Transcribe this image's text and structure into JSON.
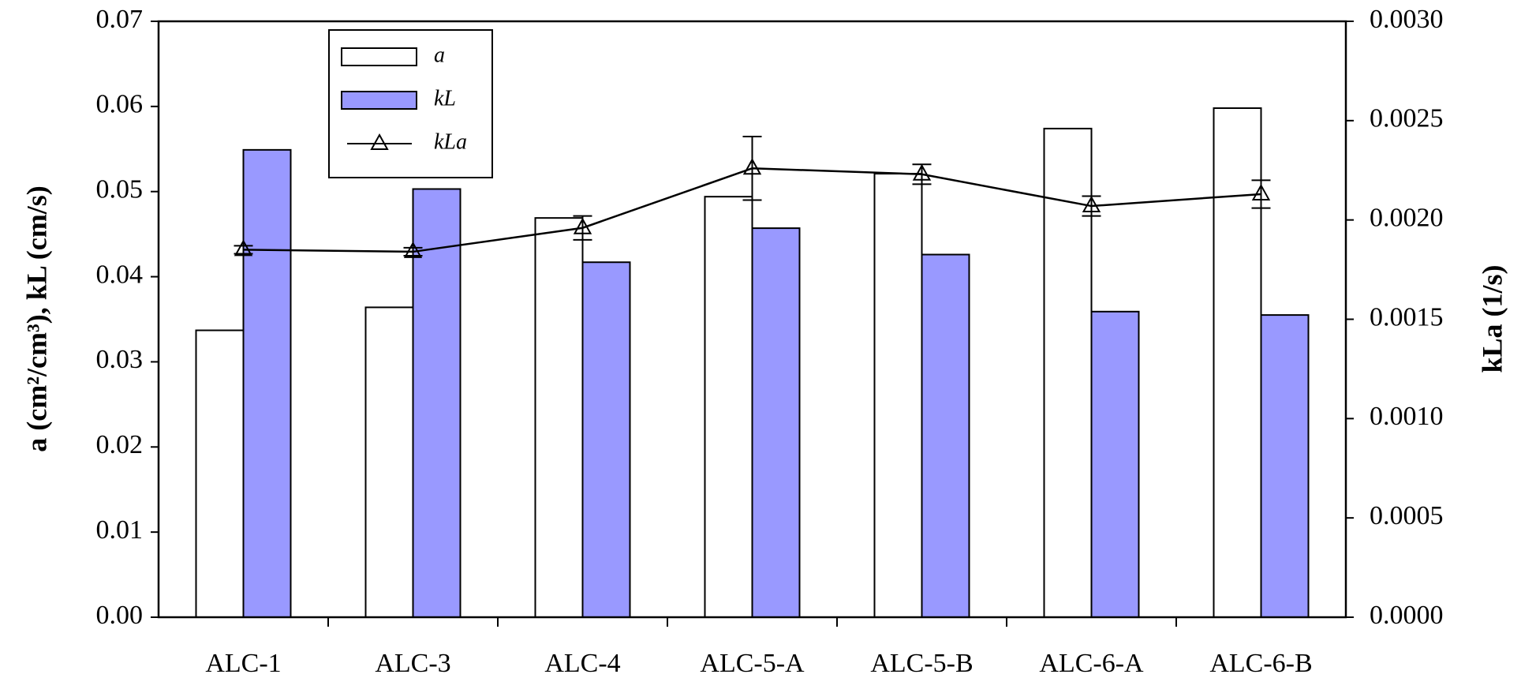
{
  "chart_data": {
    "type": "bar-line",
    "categories": [
      "ALC-1",
      "ALC-3",
      "ALC-4",
      "ALC-5-A",
      "ALC-5-B",
      "ALC-6-A",
      "ALC-6-B"
    ],
    "series": [
      {
        "name": "a",
        "type": "bar",
        "color": "#ffffff",
        "values": [
          0.0337,
          0.0364,
          0.0469,
          0.0494,
          0.0521,
          0.0574,
          0.0598
        ]
      },
      {
        "name": "kL",
        "type": "bar",
        "color": "#9999ff",
        "values": [
          0.0549,
          0.0503,
          0.0417,
          0.0457,
          0.0426,
          0.0359,
          0.0355
        ]
      },
      {
        "name": "kLa",
        "type": "line",
        "axis": "y2",
        "color": "#000000",
        "values": [
          0.00185,
          0.00184,
          0.00196,
          0.00226,
          0.00223,
          0.00207,
          0.00213
        ],
        "errors": [
          2e-05,
          2e-05,
          6e-05,
          0.00016,
          5e-05,
          5e-05,
          7e-05
        ]
      }
    ],
    "ylabel": "a (cm²/cm³), kL (cm/s)",
    "y2label": "kLa (1/s)",
    "ylim": [
      0,
      0.07
    ],
    "yticks": [
      {
        "value": 0,
        "label": "0.00"
      },
      0.01,
      0.02,
      0.03,
      0.04,
      0.05,
      0.06,
      0.07
    ],
    "y2lim": [
      0,
      0.003
    ],
    "y2ticks": [
      {
        "value": 0,
        "label": "0.0000"
      },
      0.0005,
      {
        "value": 0.001,
        "label": "0.0010"
      },
      {
        "value": 0.0015,
        "label": "0.0015"
      },
      {
        "value": 0.002,
        "label": "0.0020"
      },
      {
        "value": 0.0025,
        "label": "0.0025"
      },
      {
        "value": 0.003,
        "label": "0.0030"
      }
    ],
    "legend": "upper left"
  }
}
